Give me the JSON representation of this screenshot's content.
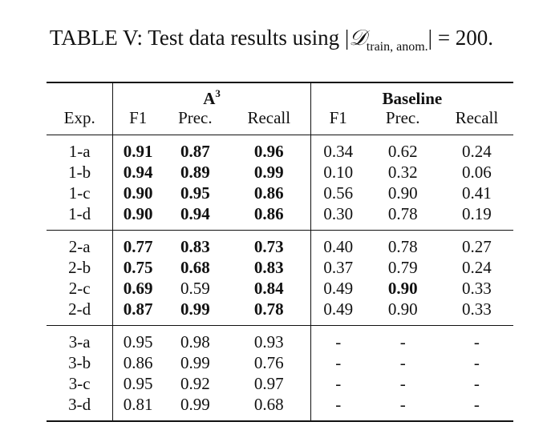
{
  "caption": {
    "prefix": "TABLE V: Test data results using |",
    "math_symbol": "𝒟",
    "math_subscript": "train, anom.",
    "suffix": "| = 200."
  },
  "table": {
    "group_a3": "A",
    "group_a3_sup": "3",
    "group_baseline": "Baseline",
    "headers": [
      "Exp.",
      "F1",
      "Prec.",
      "Recall",
      "F1",
      "Prec.",
      "Recall"
    ],
    "blocks": [
      [
        {
          "exp": "1-a",
          "a3_f1": "0.91",
          "a3_prec": "0.87",
          "a3_recall": "0.96",
          "b_f1": "0.34",
          "b_prec": "0.62",
          "b_recall": "0.24"
        },
        {
          "exp": "1-b",
          "a3_f1": "0.94",
          "a3_prec": "0.89",
          "a3_recall": "0.99",
          "b_f1": "0.10",
          "b_prec": "0.32",
          "b_recall": "0.06"
        },
        {
          "exp": "1-c",
          "a3_f1": "0.90",
          "a3_prec": "0.95",
          "a3_recall": "0.86",
          "b_f1": "0.56",
          "b_prec": "0.90",
          "b_recall": "0.41"
        },
        {
          "exp": "1-d",
          "a3_f1": "0.90",
          "a3_prec": "0.94",
          "a3_recall": "0.86",
          "b_f1": "0.30",
          "b_prec": "0.78",
          "b_recall": "0.19"
        }
      ],
      [
        {
          "exp": "2-a",
          "a3_f1": "0.77",
          "a3_prec": "0.83",
          "a3_recall": "0.73",
          "b_f1": "0.40",
          "b_prec": "0.78",
          "b_recall": "0.27"
        },
        {
          "exp": "2-b",
          "a3_f1": "0.75",
          "a3_prec": "0.68",
          "a3_recall": "0.83",
          "b_f1": "0.37",
          "b_prec": "0.79",
          "b_recall": "0.24"
        },
        {
          "exp": "2-c",
          "a3_f1": "0.69",
          "a3_prec": "0.59",
          "a3_recall": "0.84",
          "b_f1": "0.49",
          "b_prec": "0.90",
          "b_recall": "0.33"
        },
        {
          "exp": "2-d",
          "a3_f1": "0.87",
          "a3_prec": "0.99",
          "a3_recall": "0.78",
          "b_f1": "0.49",
          "b_prec": "0.90",
          "b_recall": "0.33"
        }
      ],
      [
        {
          "exp": "3-a",
          "a3_f1": "0.95",
          "a3_prec": "0.98",
          "a3_recall": "0.93",
          "b_f1": "-",
          "b_prec": "-",
          "b_recall": "-"
        },
        {
          "exp": "3-b",
          "a3_f1": "0.86",
          "a3_prec": "0.99",
          "a3_recall": "0.76",
          "b_f1": "-",
          "b_prec": "-",
          "b_recall": "-"
        },
        {
          "exp": "3-c",
          "a3_f1": "0.95",
          "a3_prec": "0.92",
          "a3_recall": "0.97",
          "b_f1": "-",
          "b_prec": "-",
          "b_recall": "-"
        },
        {
          "exp": "3-d",
          "a3_f1": "0.81",
          "a3_prec": "0.99",
          "a3_recall": "0.68",
          "b_f1": "-",
          "b_prec": "-",
          "b_recall": "-"
        }
      ]
    ],
    "bold_cells": [
      "0.0.a3_f1",
      "0.0.a3_prec",
      "0.0.a3_recall",
      "0.1.a3_f1",
      "0.1.a3_prec",
      "0.1.a3_recall",
      "0.2.a3_f1",
      "0.2.a3_prec",
      "0.2.a3_recall",
      "0.3.a3_f1",
      "0.3.a3_prec",
      "0.3.a3_recall",
      "1.0.a3_f1",
      "1.0.a3_prec",
      "1.0.a3_recall",
      "1.1.a3_f1",
      "1.1.a3_prec",
      "1.1.a3_recall",
      "1.2.a3_f1",
      "1.2.a3_recall",
      "1.2.b_prec",
      "1.3.a3_f1",
      "1.3.a3_prec",
      "1.3.a3_recall"
    ]
  }
}
